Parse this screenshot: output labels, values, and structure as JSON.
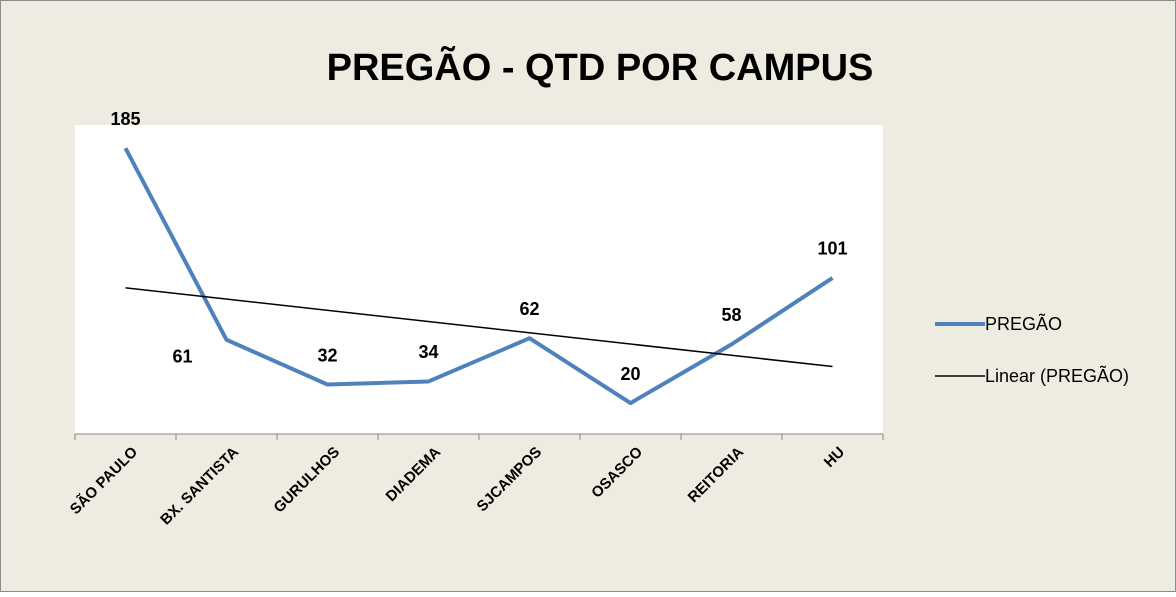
{
  "chart_data": {
    "type": "line",
    "title": "PREGÃO - QTD POR CAMPUS",
    "categories": [
      "SÃO PAULO",
      "BX. SANTISTA",
      "GURULHOS",
      "DIADEMA",
      "SJCAMPOS",
      "OSASCO",
      "REITORIA",
      "HU"
    ],
    "series": [
      {
        "name": "PREGÃO",
        "color": "#4f81bd",
        "values": [
          185,
          61,
          32,
          34,
          62,
          20,
          58,
          101
        ]
      }
    ],
    "trendline": {
      "name": "Linear (PREGÃO)",
      "color": "#000000"
    },
    "ylim": [
      0,
      200
    ],
    "legend": "right"
  }
}
